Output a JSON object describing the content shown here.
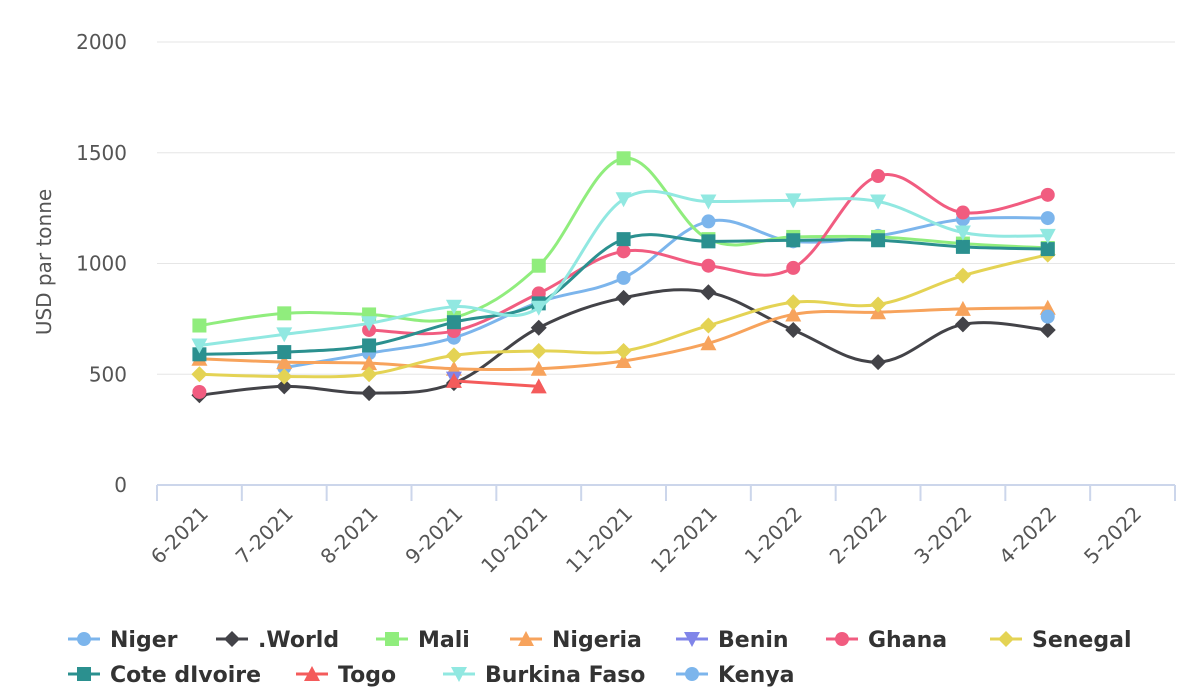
{
  "chart_data": {
    "type": "line",
    "title": "",
    "xlabel": "",
    "ylabel": "USD par tonne",
    "ylim": [
      0,
      2000
    ],
    "yticks": [
      0,
      500,
      1000,
      1500,
      2000
    ],
    "categories": [
      "6-2021",
      "7-2021",
      "8-2021",
      "9-2021",
      "10-2021",
      "11-2021",
      "12-2021",
      "1-2022",
      "2-2022",
      "3-2022",
      "4-2022",
      "5-2022"
    ],
    "legend_position": "bottom",
    "series": [
      {
        "name": "Niger",
        "color": "#7cb5ec",
        "marker": "circle",
        "values": [
          null,
          530,
          595,
          665,
          825,
          935,
          1190,
          1100,
          1125,
          1200,
          1205,
          null
        ]
      },
      {
        "name": ".World",
        "color": "#434348",
        "marker": "diamond",
        "values": [
          405,
          445,
          415,
          460,
          710,
          845,
          870,
          700,
          555,
          725,
          700,
          null
        ]
      },
      {
        "name": "Mali",
        "color": "#90ed7d",
        "marker": "square",
        "values": [
          720,
          775,
          770,
          755,
          990,
          1475,
          1110,
          1120,
          1120,
          1090,
          1070,
          null
        ]
      },
      {
        "name": "Nigeria",
        "color": "#f7a35c",
        "marker": "triangle",
        "values": [
          570,
          555,
          550,
          525,
          525,
          560,
          640,
          770,
          780,
          795,
          800,
          null
        ]
      },
      {
        "name": "Benin",
        "color": "#8085e9",
        "marker": "triangle-down",
        "values": [
          null,
          null,
          null,
          480,
          null,
          null,
          null,
          null,
          null,
          null,
          null,
          null
        ]
      },
      {
        "name": "Ghana",
        "color": "#f15c80",
        "marker": "circle",
        "values": [
          420,
          null,
          700,
          695,
          865,
          1055,
          990,
          980,
          1395,
          1230,
          1310,
          null
        ]
      },
      {
        "name": "Senegal",
        "color": "#e4d354",
        "marker": "diamond",
        "values": [
          500,
          490,
          500,
          585,
          605,
          605,
          720,
          825,
          815,
          945,
          1040,
          null
        ]
      },
      {
        "name": "Cote dIvoire",
        "color": "#2b908f",
        "marker": "square",
        "values": [
          590,
          600,
          630,
          735,
          820,
          1110,
          1100,
          1105,
          1105,
          1075,
          1065,
          null
        ]
      },
      {
        "name": "Togo",
        "color": "#f45b5b",
        "marker": "triangle",
        "values": [
          null,
          null,
          null,
          470,
          445,
          null,
          null,
          null,
          null,
          null,
          null,
          null
        ]
      },
      {
        "name": "Burkina Faso",
        "color": "#91e8e1",
        "marker": "triangle-down",
        "values": [
          630,
          680,
          730,
          805,
          800,
          1290,
          1280,
          1285,
          1280,
          1140,
          1125,
          null
        ]
      },
      {
        "name": "Kenya",
        "color": "#7cb5ec",
        "marker": "circle",
        "values": [
          null,
          null,
          null,
          null,
          null,
          null,
          null,
          null,
          null,
          null,
          760,
          null
        ]
      }
    ]
  }
}
